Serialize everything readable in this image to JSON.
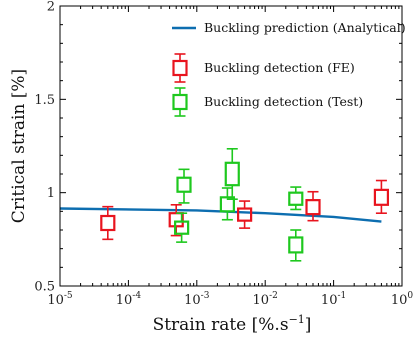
{
  "chart_data": {
    "type": "box",
    "xscale": "log",
    "xlim": [
      1e-05,
      1
    ],
    "ylim": [
      0.5,
      2
    ],
    "xlabel_main": "Strain rate [%.s",
    "xlabel_sup": "−1",
    "xlabel_close": "]",
    "ylabel": "Critical strain [%]",
    "x_ticks": [
      {
        "value": 1e-05,
        "base": "10",
        "exp": "-5"
      },
      {
        "value": 0.0001,
        "base": "10",
        "exp": "-4"
      },
      {
        "value": 0.001,
        "base": "10",
        "exp": "-3"
      },
      {
        "value": 0.01,
        "base": "10",
        "exp": "-2"
      },
      {
        "value": 0.1,
        "base": "10",
        "exp": "-1"
      },
      {
        "value": 1,
        "base": "10",
        "exp": "0"
      }
    ],
    "y_ticks": [
      {
        "value": 0.5,
        "label": "0.5"
      },
      {
        "value": 1,
        "label": "1"
      },
      {
        "value": 1.5,
        "label": "1.5"
      },
      {
        "value": 2,
        "label": "2"
      }
    ],
    "legend_position": "top-right",
    "series": [
      {
        "name": "Buckling prediction (Analytical)",
        "kind": "line",
        "color": "#0d6eb0",
        "points": [
          {
            "x": 1e-05,
            "y": 0.915
          },
          {
            "x": 0.001,
            "y": 0.905
          },
          {
            "x": 0.01,
            "y": 0.89
          },
          {
            "x": 0.1,
            "y": 0.87
          },
          {
            "x": 0.5,
            "y": 0.845
          }
        ]
      },
      {
        "name": "Buckling detection (FE)",
        "kind": "box",
        "color": "#e8141e",
        "boxes": [
          {
            "x": 5e-05,
            "min": 0.75,
            "q1": 0.8,
            "q3": 0.875,
            "max": 0.925
          },
          {
            "x": 0.0005,
            "min": 0.77,
            "q1": 0.82,
            "q3": 0.89,
            "max": 0.935
          },
          {
            "x": 0.005,
            "min": 0.81,
            "q1": 0.85,
            "q3": 0.915,
            "max": 0.955
          },
          {
            "x": 0.05,
            "min": 0.85,
            "q1": 0.885,
            "q3": 0.96,
            "max": 1.005
          },
          {
            "x": 0.5,
            "min": 0.89,
            "q1": 0.935,
            "q3": 1.015,
            "max": 1.065
          }
        ]
      },
      {
        "name": "Buckling detection (Test)",
        "kind": "box",
        "color": "#1ec81e",
        "boxes": [
          {
            "x": 0.0006,
            "min": 0.735,
            "q1": 0.78,
            "q3": 0.845,
            "max": 0.89
          },
          {
            "x": 0.00065,
            "min": 0.945,
            "q1": 1.005,
            "q3": 1.08,
            "max": 1.125
          },
          {
            "x": 0.0028,
            "min": 0.855,
            "q1": 0.9,
            "q3": 0.975,
            "max": 1.025
          },
          {
            "x": 0.0033,
            "min": 0.965,
            "q1": 1.04,
            "q3": 1.16,
            "max": 1.235
          },
          {
            "x": 0.028,
            "min": 0.91,
            "q1": 0.935,
            "q3": 1.0,
            "max": 1.03
          },
          {
            "x": 0.028,
            "min": 0.635,
            "q1": 0.68,
            "q3": 0.76,
            "max": 0.8
          }
        ]
      }
    ]
  }
}
